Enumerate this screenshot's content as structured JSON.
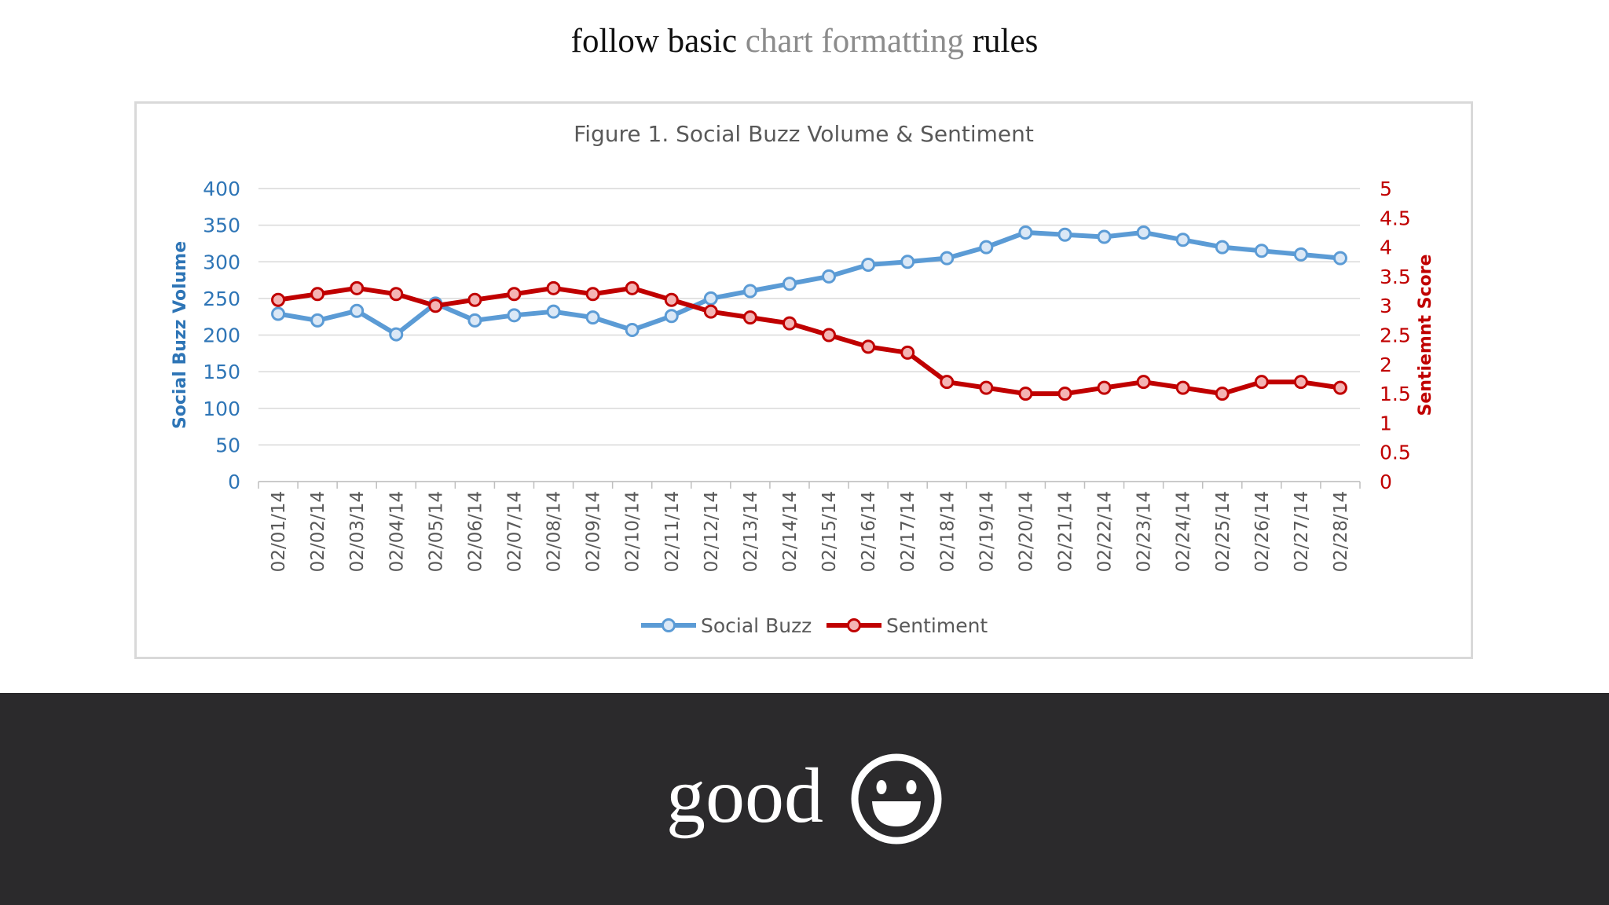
{
  "slide": {
    "title_part1": "follow basic ",
    "title_highlight": "chart formatting",
    "title_part2": " rules",
    "verdict": "good",
    "verdict_icon": "smiley-face-icon"
  },
  "colors": {
    "social_buzz": "#5b9bd5",
    "sentiment": "#c00000",
    "left_axis": "#2e75b6",
    "right_axis": "#c00000",
    "title_muted": "#8c8c8c",
    "band": "#2b2a2c"
  },
  "chart_data": {
    "type": "line",
    "title": "Figure 1. Social Buzz Volume & Sentiment",
    "ylabel": "Social Buzz Volume",
    "y2label": "Sentiemnt Score",
    "ylim": [
      0,
      400
    ],
    "y2lim": [
      0,
      5
    ],
    "yticks": [
      "0",
      "50",
      "100",
      "150",
      "200",
      "250",
      "300",
      "350",
      "400"
    ],
    "y2ticks": [
      "0",
      "0.5",
      "1",
      "1.5",
      "2",
      "2.5",
      "3",
      "3.5",
      "4",
      "4.5",
      "5"
    ],
    "grid": true,
    "legend_position": "bottom",
    "categories": [
      "02/01/14",
      "02/02/14",
      "02/03/14",
      "02/04/14",
      "02/05/14",
      "02/06/14",
      "02/07/14",
      "02/08/14",
      "02/09/14",
      "02/10/14",
      "02/11/14",
      "02/12/14",
      "02/13/14",
      "02/14/14",
      "02/15/14",
      "02/16/14",
      "02/17/14",
      "02/18/14",
      "02/19/14",
      "02/20/14",
      "02/21/14",
      "02/22/14",
      "02/23/14",
      "02/24/14",
      "02/25/14",
      "02/26/14",
      "02/27/14",
      "02/28/14"
    ],
    "series": [
      {
        "name": "Social Buzz",
        "axis": "left",
        "values": [
          229,
          220,
          233,
          201,
          243,
          220,
          227,
          232,
          224,
          207,
          226,
          250,
          260,
          270,
          280,
          296,
          300,
          305,
          320,
          340,
          337,
          334,
          340,
          330,
          320,
          315,
          310,
          305
        ]
      },
      {
        "name": "Sentiment",
        "axis": "right",
        "values": [
          3.1,
          3.2,
          3.3,
          3.2,
          3.0,
          3.1,
          3.2,
          3.3,
          3.2,
          3.3,
          3.1,
          2.9,
          2.8,
          2.7,
          2.5,
          2.3,
          2.2,
          1.7,
          1.6,
          1.5,
          1.5,
          1.6,
          1.7,
          1.6,
          1.5,
          1.7,
          1.7,
          1.6
        ]
      }
    ]
  }
}
